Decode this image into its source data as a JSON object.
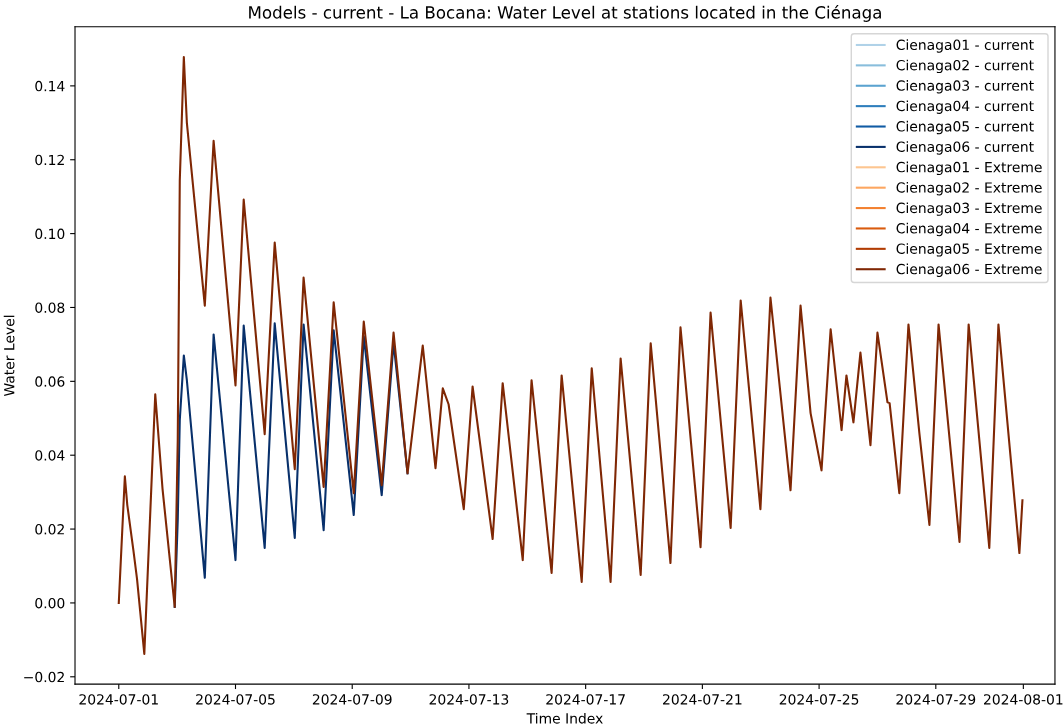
{
  "chart_data": {
    "type": "line",
    "title": "Models - current - La Bocana: Water Level at stations located in the Ciénaga",
    "xlabel": "Time Index",
    "ylabel": "Water Level",
    "x": [
      "2024-07-01T00:00",
      "2024-07-01T05:00",
      "2024-07-01T07:00",
      "2024-07-01T12:00",
      "2024-07-01T15:00",
      "2024-07-01T21:00",
      "2024-07-02T06:00",
      "2024-07-02T12:00",
      "2024-07-02T22:00",
      "2024-07-03T00:30",
      "2024-07-03T02:10",
      "2024-07-03T05:30",
      "2024-07-03T08:00",
      "2024-07-03T22:45",
      "2024-07-04T06:00",
      "2024-07-05T00:00",
      "2024-07-05T06:45",
      "2024-07-06T00:00",
      "2024-07-06T08:15",
      "2024-07-07T00:45",
      "2024-07-07T08:00",
      "2024-07-08T00:30",
      "2024-07-08T08:45",
      "2024-07-09T01:15",
      "2024-07-09T09:30",
      "2024-07-10T00:15",
      "2024-07-10T10:00",
      "2024-07-10T21:30",
      "2024-07-11T10:00",
      "2024-07-11T20:30",
      "2024-07-12T02:30",
      "2024-07-12T07:15",
      "2024-07-12T19:45",
      "2024-07-13T03:00",
      "2024-07-13T19:30",
      "2024-07-14T03:45",
      "2024-07-14T20:15",
      "2024-07-15T03:30",
      "2024-07-15T20:00",
      "2024-07-16T04:15",
      "2024-07-16T20:45",
      "2024-07-17T05:00",
      "2024-07-17T20:30",
      "2024-07-18T04:45",
      "2024-07-18T21:15",
      "2024-07-19T05:30",
      "2024-07-19T21:45",
      "2024-07-20T06:00",
      "2024-07-20T22:30",
      "2024-07-21T06:45",
      "2024-07-21T23:15",
      "2024-07-22T07:30",
      "2024-07-22T23:45",
      "2024-07-23T08:00",
      "2024-07-24T00:30",
      "2024-07-24T08:45",
      "2024-07-24T17:00",
      "2024-07-25T02:00",
      "2024-07-25T09:30",
      "2024-07-25T18:30",
      "2024-07-25T22:30",
      "2024-07-26T04:15",
      "2024-07-26T10:00",
      "2024-07-26T18:15",
      "2024-07-27T00:00",
      "2024-07-27T08:15",
      "2024-07-27T10:00",
      "2024-07-27T18:00",
      "2024-07-28T01:30",
      "2024-07-28T10:30",
      "2024-07-28T18:45",
      "2024-07-29T02:15",
      "2024-07-29T19:30",
      "2024-07-30T03:00",
      "2024-07-30T20:00",
      "2024-07-31T03:30",
      "2024-07-31T20:45",
      "2024-07-31T23:15"
    ],
    "series": [
      {
        "name": "Cienaga01 - current",
        "color": "#b0d2e8",
        "values": [
          null,
          null,
          null,
          null,
          null,
          null,
          null,
          null,
          null,
          null,
          null,
          null,
          null,
          null,
          null,
          null,
          null,
          null,
          null,
          null,
          null,
          null,
          null,
          null,
          null,
          null,
          null,
          null,
          null,
          null,
          null,
          null,
          null,
          null,
          null,
          null,
          null,
          null,
          null,
          null,
          null,
          null,
          null,
          null,
          null,
          null,
          null,
          null,
          null,
          null,
          null,
          null,
          null,
          null,
          null,
          null,
          null,
          null,
          null,
          null,
          null,
          null,
          null,
          null,
          null,
          null,
          null,
          null,
          null,
          null,
          null,
          null,
          null,
          null,
          null,
          null,
          null,
          null
        ]
      },
      {
        "name": "Cienaga02 - current",
        "color": "#89bedc",
        "values": [
          null,
          null,
          null,
          null,
          null,
          null,
          null,
          null,
          null,
          null,
          null,
          null,
          null,
          null,
          null,
          null,
          null,
          null,
          null,
          null,
          null,
          null,
          null,
          null,
          null,
          null,
          null,
          null,
          null,
          null,
          null,
          null,
          null,
          null,
          null,
          null,
          null,
          null,
          null,
          null,
          null,
          null,
          null,
          null,
          null,
          null,
          null,
          null,
          null,
          null,
          null,
          null,
          null,
          null,
          null,
          null,
          null,
          null,
          null,
          null,
          null,
          null,
          null,
          null,
          null,
          null,
          null,
          null,
          null,
          null,
          null,
          null,
          null,
          null,
          null,
          null,
          null,
          null
        ]
      },
      {
        "name": "Cienaga03 - current",
        "color": "#5ba3d0",
        "values": [
          null,
          null,
          null,
          null,
          null,
          null,
          null,
          null,
          null,
          null,
          null,
          null,
          null,
          null,
          null,
          null,
          null,
          null,
          null,
          null,
          null,
          null,
          null,
          null,
          null,
          null,
          null,
          null,
          null,
          null,
          null,
          null,
          null,
          null,
          null,
          null,
          null,
          null,
          null,
          null,
          null,
          null,
          null,
          null,
          null,
          null,
          null,
          null,
          null,
          null,
          null,
          null,
          null,
          null,
          null,
          null,
          null,
          null,
          null,
          null,
          null,
          null,
          null,
          null,
          null,
          null,
          null,
          null,
          null,
          null,
          null,
          null,
          null,
          null,
          null,
          null,
          null,
          null
        ]
      },
      {
        "name": "Cienaga04 - current",
        "color": "#2e7ebc",
        "values": [
          null,
          null,
          null,
          null,
          null,
          null,
          null,
          null,
          null,
          null,
          null,
          null,
          null,
          null,
          null,
          null,
          null,
          null,
          null,
          null,
          null,
          null,
          null,
          null,
          null,
          null,
          null,
          null,
          null,
          null,
          null,
          null,
          null,
          null,
          null,
          null,
          null,
          null,
          null,
          null,
          null,
          null,
          null,
          null,
          null,
          null,
          null,
          null,
          null,
          null,
          null,
          null,
          null,
          null,
          null,
          null,
          null,
          null,
          null,
          null,
          null,
          null,
          null,
          null,
          null,
          null,
          null,
          null,
          null,
          null,
          null,
          null,
          null,
          null,
          null,
          null,
          null,
          null
        ]
      },
      {
        "name": "Cienaga05 - current",
        "color": "#105ba4",
        "values": [
          null,
          null,
          null,
          null,
          null,
          null,
          null,
          null,
          null,
          null,
          null,
          null,
          null,
          null,
          null,
          null,
          null,
          null,
          null,
          null,
          null,
          null,
          null,
          null,
          null,
          null,
          null,
          null,
          null,
          null,
          null,
          null,
          null,
          null,
          null,
          null,
          null,
          null,
          null,
          null,
          null,
          null,
          null,
          null,
          null,
          null,
          null,
          null,
          null,
          null,
          null,
          null,
          null,
          null,
          null,
          null,
          null,
          null,
          null,
          null,
          null,
          null,
          null,
          null,
          null,
          null,
          null,
          null,
          null,
          null,
          null,
          null,
          null,
          null,
          null,
          null,
          null,
          null
        ]
      },
      {
        "name": "Cienaga06 - current",
        "color": "#08306b",
        "values": [
          null,
          null,
          null,
          null,
          null,
          null,
          null,
          null,
          -0.0011,
          0.0224,
          0.0495,
          0.067,
          0.0603,
          0.0068,
          0.0727,
          0.0116,
          0.0751,
          0.0149,
          0.0757,
          0.0176,
          0.0754,
          0.0197,
          0.0738,
          0.0238,
          0.0722,
          0.0292,
          0.0705,
          0.0351,
          null,
          null,
          null,
          null,
          null,
          null,
          null,
          null,
          null,
          null,
          null,
          null,
          null,
          null,
          null,
          null,
          null,
          null,
          null,
          null,
          null,
          null,
          null,
          null,
          null,
          null,
          null,
          null,
          null,
          null,
          null,
          null,
          null,
          null,
          null,
          null,
          null,
          null,
          null,
          null,
          null,
          null,
          null,
          null,
          null,
          null,
          null,
          null,
          null,
          null
        ]
      },
      {
        "name": "Cienaga01 - Extreme",
        "color": "#fdc590",
        "values": [
          null,
          null,
          null,
          null,
          null,
          null,
          null,
          null,
          null,
          null,
          null,
          null,
          null,
          null,
          null,
          null,
          null,
          null,
          null,
          null,
          null,
          null,
          null,
          null,
          null,
          null,
          null,
          null,
          null,
          null,
          null,
          null,
          null,
          null,
          null,
          null,
          null,
          null,
          null,
          null,
          null,
          null,
          null,
          null,
          null,
          null,
          null,
          null,
          null,
          null,
          null,
          null,
          null,
          null,
          null,
          null,
          null,
          null,
          null,
          null,
          null,
          null,
          null,
          null,
          null,
          null,
          null,
          null,
          null,
          null,
          null,
          null,
          null,
          null,
          null,
          null,
          null,
          null
        ]
      },
      {
        "name": "Cienaga02 - Extreme",
        "color": "#fda660",
        "values": [
          null,
          null,
          null,
          null,
          null,
          null,
          null,
          null,
          null,
          null,
          null,
          null,
          null,
          null,
          null,
          null,
          null,
          null,
          null,
          null,
          null,
          null,
          null,
          null,
          null,
          null,
          null,
          null,
          null,
          null,
          null,
          null,
          null,
          null,
          null,
          null,
          null,
          null,
          null,
          null,
          null,
          null,
          null,
          null,
          null,
          null,
          null,
          null,
          null,
          null,
          null,
          null,
          null,
          null,
          null,
          null,
          null,
          null,
          null,
          null,
          null,
          null,
          null,
          null,
          null,
          null,
          null,
          null,
          null,
          null,
          null,
          null,
          null,
          null,
          null,
          null,
          null,
          null
        ]
      },
      {
        "name": "Cienaga03 - Extreme",
        "color": "#f3802f",
        "values": [
          null,
          null,
          null,
          null,
          null,
          null,
          null,
          null,
          null,
          null,
          null,
          null,
          null,
          null,
          null,
          null,
          null,
          null,
          null,
          null,
          null,
          null,
          null,
          null,
          null,
          null,
          null,
          null,
          null,
          null,
          null,
          null,
          null,
          null,
          null,
          null,
          null,
          null,
          null,
          null,
          null,
          null,
          null,
          null,
          null,
          null,
          null,
          null,
          null,
          null,
          null,
          null,
          null,
          null,
          null,
          null,
          null,
          null,
          null,
          null,
          null,
          null,
          null,
          null,
          null,
          null,
          null,
          null,
          null,
          null,
          null,
          null,
          null,
          null,
          null,
          null,
          null,
          null
        ]
      },
      {
        "name": "Cienaga04 - Extreme",
        "color": "#d95b0e",
        "values": [
          null,
          null,
          null,
          null,
          null,
          null,
          null,
          null,
          null,
          null,
          null,
          null,
          null,
          null,
          null,
          null,
          null,
          null,
          null,
          null,
          null,
          null,
          null,
          null,
          null,
          null,
          null,
          null,
          null,
          null,
          null,
          null,
          null,
          null,
          null,
          null,
          null,
          null,
          null,
          null,
          null,
          null,
          null,
          null,
          null,
          null,
          null,
          null,
          null,
          null,
          null,
          null,
          null,
          null,
          null,
          null,
          null,
          null,
          null,
          null,
          null,
          null,
          null,
          null,
          null,
          null,
          null,
          null,
          null,
          null,
          null,
          null,
          null,
          null,
          null,
          null,
          null,
          null
        ]
      },
      {
        "name": "Cienaga05 - Extreme",
        "color": "#b13c03",
        "values": [
          null,
          null,
          null,
          null,
          null,
          null,
          null,
          null,
          null,
          null,
          null,
          null,
          null,
          null,
          null,
          null,
          null,
          null,
          null,
          null,
          null,
          null,
          null,
          null,
          null,
          null,
          null,
          null,
          null,
          null,
          null,
          null,
          null,
          null,
          null,
          null,
          null,
          null,
          null,
          null,
          null,
          null,
          null,
          null,
          null,
          null,
          null,
          null,
          null,
          null,
          null,
          null,
          null,
          null,
          null,
          null,
          null,
          null,
          null,
          null,
          null,
          null,
          null,
          null,
          null,
          null,
          null,
          null,
          null,
          null,
          null,
          null,
          null,
          null,
          null,
          null,
          null,
          null
        ]
      },
      {
        "name": "Cienaga06 - Extreme",
        "color": "#7f2704",
        "values": [
          0.0,
          0.0343,
          0.0265,
          0.0143,
          0.0065,
          -0.0138,
          0.0565,
          0.0308,
          -0.0011,
          0.0441,
          0.1143,
          0.1478,
          0.13,
          0.0805,
          0.1251,
          0.0589,
          0.1092,
          0.0457,
          0.0976,
          0.0362,
          0.0881,
          0.0314,
          0.0814,
          0.0297,
          0.0762,
          0.0319,
          0.0732,
          0.0351,
          0.0697,
          0.0365,
          0.0581,
          0.0538,
          0.0254,
          0.0586,
          0.0173,
          0.0595,
          0.0116,
          0.0603,
          0.0081,
          0.0616,
          0.0057,
          0.0635,
          0.0057,
          0.0662,
          0.0076,
          0.0703,
          0.0108,
          0.0746,
          0.0151,
          0.0786,
          0.0203,
          0.0819,
          0.0254,
          0.0827,
          0.0305,
          0.0805,
          0.0514,
          0.0359,
          0.0741,
          0.0468,
          0.0616,
          0.0489,
          0.0678,
          0.0427,
          0.0732,
          0.0543,
          0.0541,
          0.0297,
          0.0754,
          0.0459,
          0.0211,
          0.0754,
          0.0165,
          0.0754,
          0.0149,
          0.0754,
          0.0135,
          0.0278
        ]
      }
    ],
    "xlim": [
      "2024-06-29T12:00",
      "2024-08-02T02:00"
    ],
    "xticks": [
      "2024-07-01",
      "2024-07-05",
      "2024-07-09",
      "2024-07-13",
      "2024-07-17",
      "2024-07-21",
      "2024-07-25",
      "2024-07-29",
      "2024-08-01"
    ],
    "ylim": [
      -0.022,
      0.156
    ],
    "yticks": [
      {
        "value": -0.02,
        "label": "−0.02"
      },
      {
        "value": 0,
        "label": "0.00"
      },
      {
        "value": 0.02,
        "label": "0.02"
      },
      {
        "value": 0.04,
        "label": "0.04"
      },
      {
        "value": 0.06,
        "label": "0.06"
      },
      {
        "value": 0.08,
        "label": "0.08"
      },
      {
        "value": 0.1,
        "label": "0.10"
      },
      {
        "value": 0.12,
        "label": "0.12"
      },
      {
        "value": 0.14,
        "label": "0.14"
      }
    ],
    "legend": "top right",
    "grid": false,
    "marker": "none",
    "line_style": "solid"
  }
}
